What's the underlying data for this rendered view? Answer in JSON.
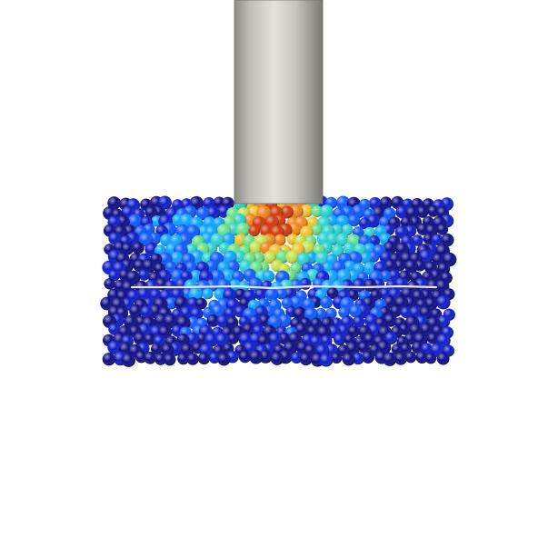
{
  "scene": {
    "description_label": "particle-simulation",
    "background_color": "#ffffff",
    "cylinder_color": "#c9c6bf",
    "colormap": [
      "#000080",
      "#0010c8",
      "#0050ff",
      "#00a0ff",
      "#20d0d0",
      "#60e080",
      "#c0e040",
      "#f0c020",
      "#f08010",
      "#d03000"
    ],
    "crack_color": "#e6e6e6"
  }
}
